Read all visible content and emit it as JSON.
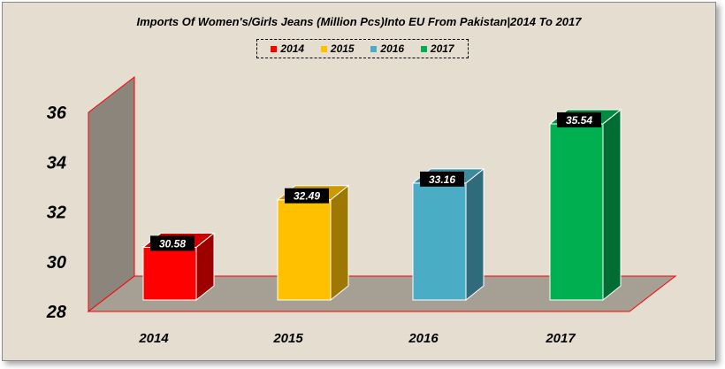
{
  "chart_data": {
    "type": "bar",
    "title": "Imports Of Women's/Girls Jeans (Million Pcs)Into EU From Pakistan|2014 To 2017",
    "categories": [
      "2014",
      "2015",
      "2016",
      "2017"
    ],
    "values": [
      30.58,
      32.49,
      33.16,
      35.54
    ],
    "data_labels": [
      "30.58",
      "32.49",
      "33.16",
      "35.54"
    ],
    "series": [
      {
        "name": "2014",
        "color": "#ff0000"
      },
      {
        "name": "2015",
        "color": "#ffc000"
      },
      {
        "name": "2016",
        "color": "#4bacc6"
      },
      {
        "name": "2017",
        "color": "#00b050"
      }
    ],
    "ylim": [
      28,
      36
    ],
    "yticks": [
      "28",
      "30",
      "32",
      "34",
      "36"
    ],
    "xlabel": "",
    "ylabel": "",
    "grid": false,
    "legend_position": "top-center",
    "style": "3d-column"
  }
}
